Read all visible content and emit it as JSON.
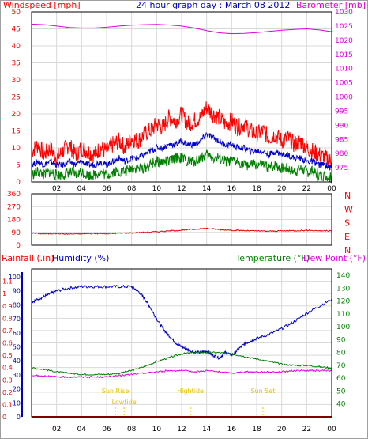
{
  "colors": {
    "wind": "#ff0000",
    "gust": "#0000c8",
    "windLow": "#008000",
    "baro": "#e000e0",
    "winddir": "#e00000",
    "rain": "#ff0000",
    "humidity": "#0000c8",
    "temperature": "#008000",
    "dewpoint": "#e000e0",
    "events": "#e8c000",
    "grid": "#d8d8d8",
    "axis": "#000000"
  },
  "chart_data": [
    {
      "type": "line",
      "title": "24 hour graph day : March 08 2012",
      "ylabel": "Windspeed [mph]",
      "y2label": "Barometer [mb]",
      "ylim": [
        0,
        50
      ],
      "y2lim": [
        970,
        1030
      ],
      "yticks": [
        "0",
        "5",
        "10",
        "15",
        "20",
        "25",
        "30",
        "35",
        "40",
        "45",
        "50"
      ],
      "y2ticks": [
        "975",
        "980",
        "985",
        "990",
        "995",
        "1000",
        "1005",
        "1010",
        "1015",
        "1020",
        "1025",
        "1030"
      ],
      "xticks": [
        "02",
        "04",
        "06",
        "08",
        "10",
        "12",
        "14",
        "16",
        "18",
        "20",
        "22",
        "00"
      ],
      "series": [
        {
          "key": "wind_high",
          "colorKey": "wind",
          "axis": "left",
          "x": [
            0,
            0.5,
            1,
            1.5,
            2,
            2.5,
            3,
            3.5,
            4,
            4.5,
            5,
            5.5,
            6,
            6.5,
            7,
            7.5,
            8,
            8.5,
            9,
            9.5,
            10,
            10.5,
            11,
            11.5,
            12,
            12.5,
            13,
            13.5,
            14,
            14.5,
            15,
            15.5,
            16,
            16.5,
            17,
            17.5,
            18,
            18.5,
            19,
            19.5,
            20,
            20.5,
            21,
            21.5,
            22,
            22.5,
            23,
            23.5,
            24
          ],
          "y": [
            9,
            11,
            8,
            10,
            7,
            9,
            11,
            8,
            10,
            9,
            8,
            10,
            9,
            11,
            12,
            10,
            13,
            12,
            14,
            15,
            17,
            16,
            19,
            18,
            20,
            17,
            18,
            19,
            22,
            20,
            19,
            17,
            18,
            16,
            17,
            15,
            14,
            15,
            13,
            14,
            12,
            13,
            11,
            12,
            10,
            9,
            8,
            7,
            6
          ]
        },
        {
          "key": "wind_avg",
          "colorKey": "gust",
          "axis": "left",
          "x": [
            0,
            0.5,
            1,
            1.5,
            2,
            2.5,
            3,
            3.5,
            4,
            4.5,
            5,
            5.5,
            6,
            6.5,
            7,
            7.5,
            8,
            8.5,
            9,
            9.5,
            10,
            10.5,
            11,
            11.5,
            12,
            12.5,
            13,
            13.5,
            14,
            14.5,
            15,
            15.5,
            16,
            16.5,
            17,
            17.5,
            18,
            18.5,
            19,
            19.5,
            20,
            20.5,
            21,
            21.5,
            22,
            22.5,
            23,
            23.5,
            24
          ],
          "y": [
            5,
            6,
            5,
            6,
            5,
            5,
            6,
            5,
            6,
            5,
            5,
            6,
            5,
            6,
            7,
            6,
            7,
            7,
            8,
            9,
            10,
            10,
            11,
            11,
            12,
            11,
            11,
            12,
            14,
            13,
            12,
            11,
            11,
            10,
            10,
            9,
            9,
            9,
            8,
            9,
            8,
            8,
            7,
            7,
            6,
            6,
            5,
            5,
            4
          ]
        },
        {
          "key": "wind_low",
          "colorKey": "windLow",
          "axis": "left",
          "x": [
            0,
            0.5,
            1,
            1.5,
            2,
            2.5,
            3,
            3.5,
            4,
            4.5,
            5,
            5.5,
            6,
            6.5,
            7,
            7.5,
            8,
            8.5,
            9,
            9.5,
            10,
            10.5,
            11,
            11.5,
            12,
            12.5,
            13,
            13.5,
            14,
            14.5,
            15,
            15.5,
            16,
            16.5,
            17,
            17.5,
            18,
            18.5,
            19,
            19.5,
            20,
            20.5,
            21,
            21.5,
            22,
            22.5,
            23,
            23.5,
            24
          ],
          "y": [
            2,
            3,
            2,
            3,
            2,
            2,
            3,
            2,
            3,
            2,
            2,
            3,
            2,
            3,
            3,
            3,
            4,
            4,
            4,
            5,
            6,
            6,
            6,
            7,
            7,
            6,
            6,
            7,
            8,
            7,
            7,
            6,
            6,
            6,
            5,
            5,
            5,
            5,
            4,
            5,
            4,
            4,
            3,
            4,
            3,
            3,
            2,
            2,
            1
          ]
        },
        {
          "key": "barometer",
          "colorKey": "baro",
          "axis": "right",
          "x": [
            0,
            1,
            2,
            3,
            4,
            5,
            6,
            7,
            8,
            9,
            10,
            11,
            12,
            13,
            14,
            15,
            16,
            17,
            18,
            19,
            20,
            21,
            22,
            23,
            24
          ],
          "y": [
            1025.7,
            1025.5,
            1025,
            1024.5,
            1024.3,
            1024.3,
            1024.6,
            1025,
            1025.3,
            1025.5,
            1025.6,
            1025.4,
            1025,
            1024.3,
            1023.4,
            1022.6,
            1022.3,
            1022.4,
            1022.7,
            1023.1,
            1023.5,
            1023.8,
            1024,
            1023.6,
            1023
          ]
        }
      ]
    },
    {
      "type": "line",
      "yticks": [
        "0",
        "90",
        "180",
        "270",
        "360"
      ],
      "y2ticks": [
        "N",
        "W",
        "S",
        "E",
        "N"
      ],
      "ylim": [
        0,
        360
      ],
      "series": [
        {
          "key": "wind_direction",
          "colorKey": "winddir",
          "x": [
            0,
            1,
            2,
            3,
            4,
            5,
            6,
            7,
            8,
            9,
            10,
            11,
            12,
            13,
            14,
            15,
            16,
            17,
            18,
            19,
            20,
            21,
            22,
            23,
            24
          ],
          "y": [
            85,
            80,
            82,
            78,
            80,
            82,
            80,
            84,
            86,
            90,
            95,
            100,
            105,
            112,
            118,
            110,
            105,
            102,
            100,
            98,
            100,
            102,
            104,
            102,
            100
          ]
        }
      ]
    },
    {
      "type": "line",
      "ylabel": "Rainfall (.in)",
      "ylabel2": "Humidity (%)",
      "y2label": "Temperature (°F)",
      "y2label2": "Dew Point (°F)",
      "ylim_rain": [
        0,
        1.2
      ],
      "ylim_humidity": [
        0,
        100
      ],
      "y2lim": [
        30,
        145
      ],
      "rain_ticks": [
        "0",
        "0.1",
        "0.2",
        "0.3",
        "0.4",
        "0.5",
        "0.6",
        "0.7",
        "0.8",
        "0.9",
        "1",
        "1.1"
      ],
      "humidity_ticks": [
        "0",
        "10",
        "20",
        "30",
        "40",
        "50",
        "60",
        "70",
        "80",
        "90",
        "100"
      ],
      "temp_ticks": [
        "40",
        "50",
        "60",
        "70",
        "80",
        "90",
        "100",
        "110",
        "120",
        "130",
        "140"
      ],
      "xticks": [
        "02",
        "04",
        "06",
        "08",
        "10",
        "12",
        "14",
        "16",
        "18",
        "20",
        "22",
        "00"
      ],
      "series": [
        {
          "key": "humidity",
          "colorKey": "humidity",
          "axis": "humidity",
          "x": [
            0,
            0.5,
            1,
            1.5,
            2,
            3,
            4,
            5,
            6,
            7,
            8,
            8.5,
            9,
            9.5,
            10,
            10.5,
            11,
            11.5,
            12,
            12.5,
            13,
            13.5,
            14,
            14.5,
            15,
            15.5,
            16,
            16.5,
            17,
            17.5,
            18,
            19,
            20,
            21,
            22,
            23,
            24
          ],
          "y": [
            82,
            84,
            86,
            88,
            90,
            92,
            93,
            93,
            93,
            93,
            93,
            90,
            85,
            78,
            70,
            63,
            58,
            53,
            50,
            48,
            46,
            46,
            47,
            44,
            42,
            46,
            44,
            48,
            52,
            54,
            56,
            59,
            63,
            68,
            74,
            79,
            84
          ]
        },
        {
          "key": "temperature",
          "colorKey": "temperature",
          "axis": "right",
          "x": [
            0,
            1,
            2,
            3,
            4,
            5,
            6,
            7,
            8,
            9,
            10,
            11,
            12,
            13,
            14,
            15,
            16,
            17,
            18,
            19,
            20,
            21,
            22,
            23,
            24
          ],
          "y": [
            68,
            67,
            65,
            64,
            63,
            63,
            63,
            64,
            66,
            69,
            73,
            76,
            79,
            80,
            80,
            80,
            79,
            77,
            75,
            73,
            71,
            70,
            70,
            69,
            68
          ]
        },
        {
          "key": "dewpoint",
          "colorKey": "dewpoint",
          "axis": "right",
          "x": [
            0,
            1,
            2,
            3,
            4,
            5,
            6,
            7,
            8,
            9,
            10,
            11,
            12,
            13,
            14,
            15,
            16,
            17,
            18,
            19,
            20,
            21,
            22,
            23,
            24
          ],
          "y": [
            62,
            62,
            61,
            61,
            61,
            61,
            61,
            62,
            63,
            64,
            65,
            66,
            66,
            65,
            66,
            65,
            64,
            65,
            65,
            65,
            65,
            66,
            66,
            66,
            66
          ]
        },
        {
          "key": "rainfall",
          "colorKey": "rain",
          "axis": "rain",
          "x": [
            0,
            24
          ],
          "y": [
            0,
            0
          ]
        }
      ],
      "annotations": [
        {
          "label": "Sun Rise",
          "x": 6.7,
          "row": 0
        },
        {
          "label": "Lowtide",
          "x": 7.4,
          "row": 1
        },
        {
          "label": "Hightide",
          "x": 12.7,
          "row": 0
        },
        {
          "label": "Sun Set",
          "x": 18.5,
          "row": 0
        }
      ]
    }
  ]
}
